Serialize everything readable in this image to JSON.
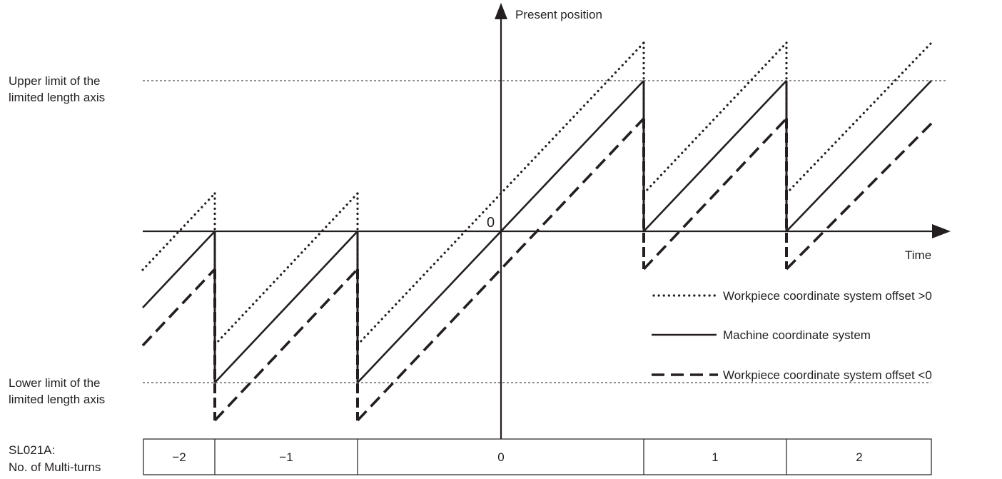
{
  "axes": {
    "y_label": "Present position",
    "x_label": "Time",
    "origin_label": "0"
  },
  "limits": {
    "upper": [
      "Upper limit of the",
      "limited length axis"
    ],
    "lower": [
      "Lower limit of the",
      "limited length axis"
    ]
  },
  "legend": {
    "dotted": "Workpiece coordinate system offset >0",
    "solid": "Machine coordinate system",
    "dashed": "Workpiece coordinate system offset <0"
  },
  "table": {
    "label": [
      "SL021A:",
      "No. of Multi-turns"
    ],
    "cells": [
      "−2",
      "−1",
      "0",
      "1",
      "2"
    ]
  }
}
